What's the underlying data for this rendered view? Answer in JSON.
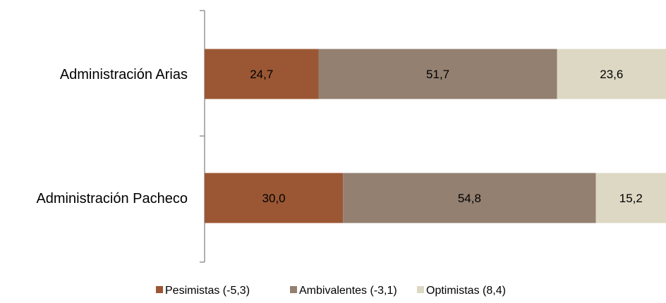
{
  "chart_data": {
    "type": "bar",
    "orientation": "horizontal",
    "stacked": true,
    "percent_stacked": true,
    "categories": [
      "Administración Arias",
      "Administración Pacheco"
    ],
    "series": [
      {
        "name": "Pesimistas (-5,3)",
        "values": [
          24.7,
          30.0
        ],
        "labels": [
          "24,7",
          "30,0"
        ],
        "color": "#9B5734"
      },
      {
        "name": "Ambivalentes (-3,1)",
        "values": [
          51.7,
          54.8
        ],
        "labels": [
          "51,7",
          "54,8"
        ],
        "color": "#938070"
      },
      {
        "name": "Optimistas (8,4)",
        "values": [
          23.6,
          15.2
        ],
        "labels": [
          "23,6",
          "15,2"
        ],
        "color": "#DDD8C3"
      }
    ],
    "xlim": [
      0,
      100
    ],
    "legend_position": "bottom",
    "grid": false
  }
}
